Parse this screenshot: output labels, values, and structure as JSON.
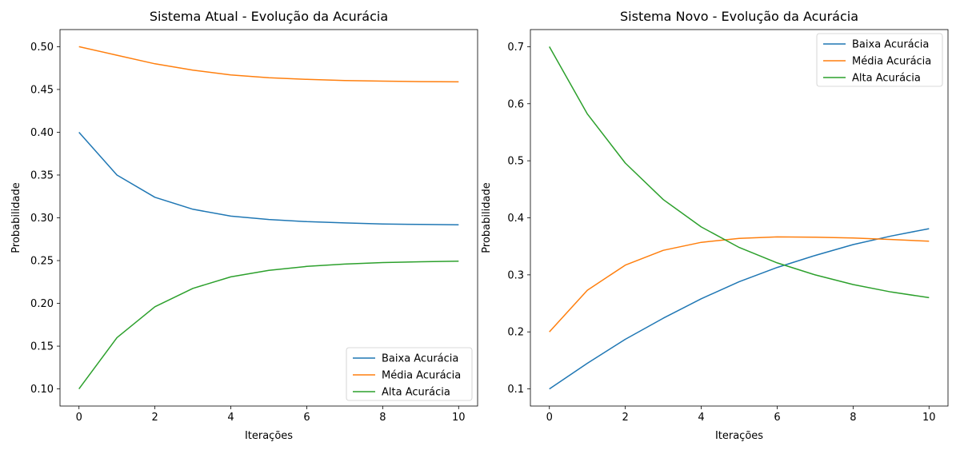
{
  "chart_data": [
    {
      "type": "line",
      "title": "Sistema Atual - Evolução da Acurácia",
      "xlabel": "Iterações",
      "ylabel": "Probabilidade",
      "xlim": [
        -0.5,
        10.5
      ],
      "ylim": [
        0.08,
        0.52
      ],
      "xticks": [
        0,
        2,
        4,
        6,
        8,
        10
      ],
      "yticks": [
        0.1,
        0.15,
        0.2,
        0.25,
        0.3,
        0.35,
        0.4,
        0.45,
        0.5
      ],
      "ytick_decimals": 2,
      "legend_position": "lower-right",
      "grid": false,
      "x": [
        0,
        1,
        2,
        3,
        4,
        5,
        6,
        7,
        8,
        9,
        10
      ],
      "series": [
        {
          "name": "Baixa Acurácia",
          "color": "#1f77b4",
          "values": [
            0.4,
            0.35,
            0.324,
            0.31,
            0.302,
            0.298,
            0.2955,
            0.294,
            0.2928,
            0.2922,
            0.2918
          ]
        },
        {
          "name": "Média Acurácia",
          "color": "#ff7f0e",
          "values": [
            0.5,
            0.49,
            0.48,
            0.4725,
            0.467,
            0.4638,
            0.4618,
            0.4605,
            0.4597,
            0.4592,
            0.4589
          ]
        },
        {
          "name": "Alta Acurácia",
          "color": "#2ca02c",
          "values": [
            0.1,
            0.16,
            0.196,
            0.2175,
            0.231,
            0.2385,
            0.2432,
            0.2459,
            0.2477,
            0.2486,
            0.2493
          ]
        }
      ]
    },
    {
      "type": "line",
      "title": "Sistema Novo - Evolução da Acurácia",
      "xlabel": "Iterações",
      "ylabel": "Probabilidade",
      "xlim": [
        -0.5,
        10.5
      ],
      "ylim": [
        0.07,
        0.73
      ],
      "xticks": [
        0,
        2,
        4,
        6,
        8,
        10
      ],
      "yticks": [
        0.1,
        0.2,
        0.3,
        0.4,
        0.5,
        0.6,
        0.7
      ],
      "ytick_decimals": 1,
      "legend_position": "upper-right",
      "grid": false,
      "x": [
        0,
        1,
        2,
        3,
        4,
        5,
        6,
        7,
        8,
        9,
        10
      ],
      "series": [
        {
          "name": "Baixa Acurácia",
          "color": "#1f77b4",
          "values": [
            0.1,
            0.145,
            0.187,
            0.224,
            0.258,
            0.288,
            0.313,
            0.334,
            0.353,
            0.368,
            0.381
          ]
        },
        {
          "name": "Média Acurácia",
          "color": "#ff7f0e",
          "values": [
            0.2,
            0.273,
            0.317,
            0.343,
            0.357,
            0.364,
            0.3665,
            0.366,
            0.3645,
            0.362,
            0.359
          ]
        },
        {
          "name": "Alta Acurácia",
          "color": "#2ca02c",
          "values": [
            0.7,
            0.582,
            0.496,
            0.432,
            0.384,
            0.348,
            0.321,
            0.3,
            0.283,
            0.27,
            0.26
          ]
        }
      ]
    }
  ]
}
